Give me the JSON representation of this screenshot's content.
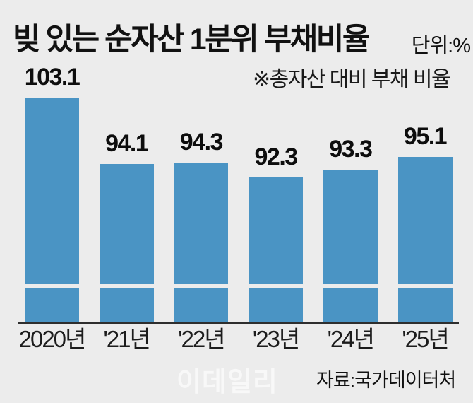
{
  "header": {
    "title": "빚 있는 순자산 1분위 부채비율",
    "unit_label": "단위:%",
    "note": "※총자산 대비 부채 비율"
  },
  "footer": {
    "source": "자료:국가데이터처",
    "watermark": "이데일리"
  },
  "colors": {
    "bar": "#4a94c4",
    "background": "#ececec",
    "axis": "#2e2e2e",
    "text": "#111111"
  },
  "chart_data": {
    "type": "bar",
    "title": "빚 있는 순자산 1분위 부채비율",
    "unit": "%",
    "note": "※총자산 대비 부채 비율",
    "source": "자료:국가데이터처",
    "categories": [
      "2020년",
      "'21년",
      "'22년",
      "'23년",
      "'24년",
      "'25년"
    ],
    "values": [
      103.1,
      94.1,
      94.3,
      92.3,
      93.3,
      95.1
    ],
    "xlabel": "",
    "ylabel": "",
    "axis_break": true,
    "grid": false,
    "legend": false,
    "value_labels_shown": true
  }
}
